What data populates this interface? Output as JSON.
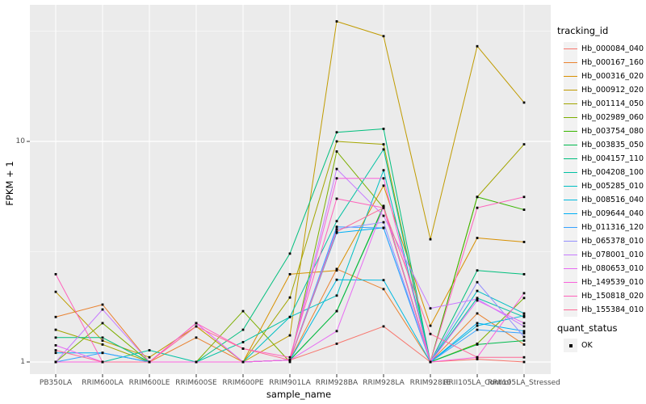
{
  "figure": {
    "xlabel": "sample_name",
    "ylabel": "FPKM + 1",
    "legend1_title": "tracking_id",
    "legend2_title": "quant_status",
    "quant_status_value": "OK",
    "y_tick_labels": [
      "10",
      "1"
    ],
    "colors": {
      "panel_bg": "#EBEBEB",
      "grid": "#FFFFFF",
      "tick_text": "#4D4D4D",
      "axis_text": "#000000",
      "point": "#000000",
      "legend_key_bg": "#F2F2F2"
    }
  },
  "chart_data": {
    "type": "line",
    "title": "",
    "xlabel": "sample_name",
    "ylabel": "FPKM + 1",
    "y_scale": "log10",
    "ylim": [
      0.9,
      42
    ],
    "y_major_ticks": [
      1,
      10
    ],
    "y_minor_ticks": [
      3.1623,
      31.623
    ],
    "grid": true,
    "legend_position": "right",
    "legend_title": "tracking_id",
    "point_legend": {
      "title": "quant_status",
      "items": [
        "OK"
      ]
    },
    "categories": [
      "PB350LA",
      "RRIM600LA",
      "RRIM600LE",
      "RRIM600SE",
      "RRIM600PE",
      "RRIM901LA",
      "RRIM928BA",
      "RRIM928LA",
      "RRIM928LE",
      "RRII105LA_Control",
      "RRII105LA_Stressed"
    ],
    "series": [
      {
        "name": "Hb_000084_040",
        "color": "#F8766D",
        "values": [
          1.0,
          1.0,
          1.0,
          1.0,
          1.0,
          1.02,
          1.21,
          1.45,
          1.0,
          1.03,
          1.0
        ]
      },
      {
        "name": "Hb_000167_160",
        "color": "#EA8331",
        "values": [
          1.6,
          1.82,
          1.0,
          1.29,
          1.0,
          1.02,
          2.64,
          2.14,
          1.0,
          1.66,
          1.2
        ]
      },
      {
        "name": "Hb_000316_020",
        "color": "#D89000",
        "values": [
          1.0,
          1.0,
          1.0,
          1.0,
          1.0,
          2.5,
          2.6,
          6.3,
          1.46,
          3.65,
          3.5
        ]
      },
      {
        "name": "Hb_000912_020",
        "color": "#C09B00",
        "values": [
          2.08,
          1.25,
          1.05,
          1.45,
          1.0,
          1.32,
          35.0,
          30.0,
          3.6,
          27.0,
          15.0
        ]
      },
      {
        "name": "Hb_001114_050",
        "color": "#A3A500",
        "values": [
          1.4,
          1.2,
          1.0,
          1.0,
          1.0,
          1.96,
          10.0,
          9.7,
          1.0,
          5.6,
          9.7
        ]
      },
      {
        "name": "Hb_002989_060",
        "color": "#7CAE00",
        "values": [
          1.0,
          1.5,
          1.0,
          1.0,
          1.7,
          1.0,
          9.0,
          5.0,
          1.0,
          1.21,
          1.95
        ]
      },
      {
        "name": "Hb_003754_080",
        "color": "#39B600",
        "values": [
          1.0,
          1.0,
          1.0,
          1.0,
          1.0,
          1.02,
          1.7,
          5.1,
          1.0,
          5.6,
          4.9
        ]
      },
      {
        "name": "Hb_003835_050",
        "color": "#00BB4E",
        "values": [
          1.0,
          1.0,
          1.0,
          1.0,
          1.0,
          1.02,
          1.7,
          5.05,
          1.0,
          1.2,
          1.25
        ]
      },
      {
        "name": "Hb_004157_110",
        "color": "#00BF7D",
        "values": [
          1.29,
          1.29,
          1.0,
          1.0,
          1.4,
          3.1,
          11.0,
          11.4,
          1.0,
          2.6,
          2.5
        ]
      },
      {
        "name": "Hb_004208_100",
        "color": "#00C1A3",
        "values": [
          1.0,
          1.0,
          1.13,
          1.0,
          1.23,
          1.6,
          4.35,
          9.2,
          1.0,
          1.95,
          1.6
        ]
      },
      {
        "name": "Hb_005285_010",
        "color": "#00BFC4",
        "values": [
          1.0,
          1.0,
          1.0,
          1.0,
          1.0,
          1.6,
          2.0,
          7.4,
          1.0,
          2.1,
          1.66
        ]
      },
      {
        "name": "Hb_008516_040",
        "color": "#00BAE0",
        "values": [
          1.0,
          1.0,
          1.0,
          1.0,
          1.0,
          1.02,
          2.36,
          2.35,
          1.0,
          1.46,
          1.62
        ]
      },
      {
        "name": "Hb_009644_040",
        "color": "#00B0F6",
        "values": [
          1.1,
          1.1,
          1.0,
          1.0,
          1.0,
          1.02,
          3.85,
          4.06,
          1.0,
          1.5,
          1.38
        ]
      },
      {
        "name": "Hb_011316_120",
        "color": "#35A2FF",
        "values": [
          1.0,
          1.1,
          1.0,
          1.0,
          1.0,
          1.02,
          4.1,
          4.05,
          1.0,
          1.4,
          1.35
        ]
      },
      {
        "name": "Hb_065378_010",
        "color": "#9590FF",
        "values": [
          1.0,
          1.0,
          1.0,
          1.0,
          1.0,
          1.02,
          4.0,
          4.3,
          1.0,
          2.3,
          1.3
        ]
      },
      {
        "name": "Hb_078001_010",
        "color": "#C77CFF",
        "values": [
          1.0,
          1.73,
          1.0,
          1.5,
          1.0,
          1.02,
          7.5,
          4.6,
          1.75,
          1.93,
          1.45
        ]
      },
      {
        "name": "Hb_080653_010",
        "color": "#E76BF3",
        "values": [
          1.19,
          1.0,
          1.0,
          1.5,
          1.0,
          1.02,
          1.38,
          5.05,
          1.0,
          1.9,
          1.5
        ]
      },
      {
        "name": "Hb_149539_010",
        "color": "#FA62DB",
        "values": [
          1.0,
          1.0,
          1.0,
          1.0,
          1.0,
          1.02,
          6.8,
          6.8,
          1.0,
          1.05,
          2.05
        ]
      },
      {
        "name": "Hb_150818_020",
        "color": "#FF62BC",
        "values": [
          2.5,
          1.0,
          1.0,
          1.5,
          1.15,
          1.05,
          5.5,
          5.0,
          1.0,
          5.0,
          5.6
        ]
      },
      {
        "name": "Hb_155384_010",
        "color": "#FF6A98",
        "values": [
          1.13,
          1.0,
          1.0,
          1.45,
          1.15,
          1.02,
          3.9,
          5.0,
          1.34,
          1.05,
          1.05
        ]
      }
    ]
  }
}
